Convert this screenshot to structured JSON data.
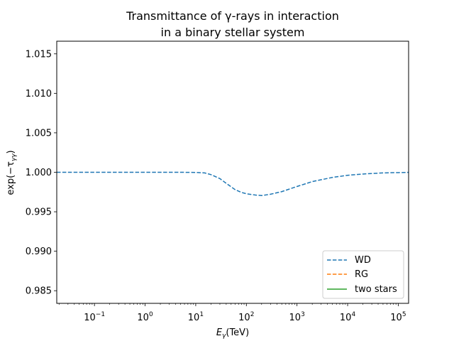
{
  "chart_data": {
    "type": "line",
    "title_lines": [
      "Transmittance of γ-rays in interaction",
      "in a binary stellar system"
    ],
    "xlabel": {
      "main": "E",
      "sub": "γ",
      "rest": "(TeV)"
    },
    "ylabel": "exp(−τ",
    "ylabel_sub": "γγ",
    "ylabel_close": ")",
    "xscale": "log",
    "xlim": [
      0.018,
      160000
    ],
    "ylim": [
      0.9834,
      1.0166
    ],
    "x_ticks": [
      {
        "value": 0.1,
        "base": "10",
        "exp": "−1"
      },
      {
        "value": 1,
        "base": "10",
        "exp": "0"
      },
      {
        "value": 10,
        "base": "10",
        "exp": "1"
      },
      {
        "value": 100,
        "base": "10",
        "exp": "2"
      },
      {
        "value": 1000,
        "base": "10",
        "exp": "3"
      },
      {
        "value": 10000,
        "base": "10",
        "exp": "4"
      },
      {
        "value": 100000,
        "base": "10",
        "exp": "5"
      }
    ],
    "y_ticks": [
      {
        "value": 0.985,
        "label": "0.985"
      },
      {
        "value": 0.99,
        "label": "0.990"
      },
      {
        "value": 0.995,
        "label": "0.995"
      },
      {
        "value": 1.0,
        "label": "1.000"
      },
      {
        "value": 1.005,
        "label": "1.005"
      },
      {
        "value": 1.01,
        "label": "1.010"
      },
      {
        "value": 1.015,
        "label": "1.015"
      }
    ],
    "grid": false,
    "legend_position": "lower-right",
    "series": [
      {
        "name": "WD",
        "color": "#1f77b4",
        "style": "dashed",
        "x": [
          0.018,
          0.1,
          1,
          5,
          10,
          15,
          20,
          30,
          40,
          60,
          80,
          100,
          150,
          200,
          300,
          500,
          1000,
          2000,
          5000,
          10000,
          20000,
          50000,
          100000,
          160000
        ],
        "y": [
          1.0,
          1.0,
          1.0,
          1.0,
          0.99998,
          0.99992,
          0.9997,
          0.9992,
          0.9986,
          0.9978,
          0.99745,
          0.99728,
          0.99712,
          0.99705,
          0.99722,
          0.99755,
          0.9982,
          0.99882,
          0.99935,
          0.99962,
          0.99978,
          0.99992,
          0.99996,
          0.99999
        ]
      },
      {
        "name": "RG",
        "color": "#ff7f0e",
        "style": "dashed",
        "x": [],
        "y": []
      },
      {
        "name": "two stars",
        "color": "#2ca02c",
        "style": "solid",
        "x": [],
        "y": []
      }
    ]
  }
}
